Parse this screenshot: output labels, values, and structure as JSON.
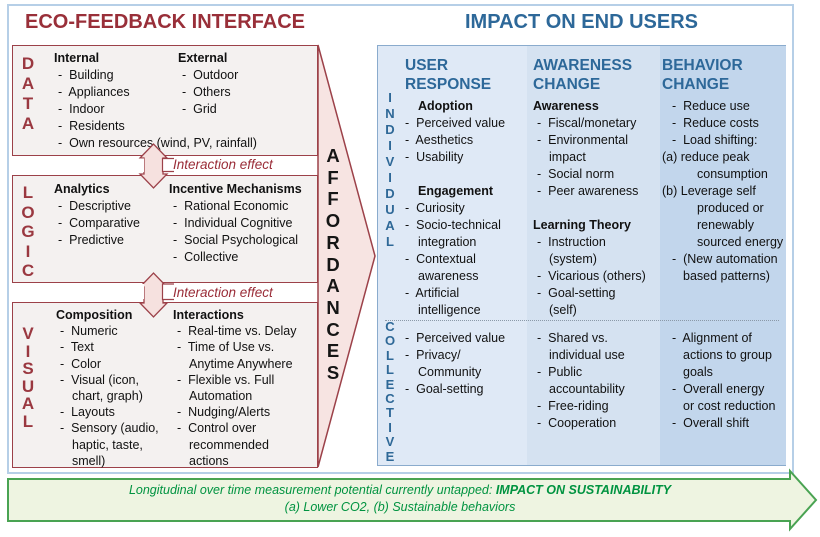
{
  "bullet_marker": "-  ",
  "colors": {
    "dark_red_text": "#992f39",
    "dark_red_border": "#9c4149",
    "box_fill": "#f4f1f0",
    "pink_arrow_fill": "#f7e4e2",
    "steel_blue": "#2d6899",
    "panel_border": "#8aabcd",
    "col1_fill": "#dfe9f6",
    "col2_fill": "#d5e2f1",
    "col3_fill": "#c2d6ec",
    "green_text": "#009340",
    "green_border": "#49a352",
    "green_fill": "#eef4e1"
  },
  "left": {
    "title": "ECO-FEEDBACK INTERFACE",
    "interaction_label": "Interaction effect",
    "affordances": "AFFORDANCES",
    "boxes": [
      {
        "letters": "DATA",
        "col1": [
          [
            "h",
            "Internal"
          ],
          [
            "b",
            "Building"
          ],
          [
            "b",
            "Appliances"
          ],
          [
            "b",
            "Indoor"
          ],
          [
            "b",
            "Residents"
          ],
          [
            "b",
            "Own resources (wind, PV, rainfall)"
          ]
        ],
        "col2": [
          [
            "h",
            "External"
          ],
          [
            "b",
            "Outdoor"
          ],
          [
            "b",
            "Others"
          ],
          [
            "b",
            "Grid"
          ]
        ]
      },
      {
        "letters": "LOGIC",
        "col1": [
          [
            "h",
            "Analytics"
          ],
          [
            "b",
            "Descriptive"
          ],
          [
            "b",
            "Comparative"
          ],
          [
            "b",
            "Predictive"
          ]
        ],
        "col2": [
          [
            "h",
            "Incentive Mechanisms"
          ],
          [
            "b",
            "Rational Economic"
          ],
          [
            "b",
            "Individual Cognitive"
          ],
          [
            "b",
            "Social Psychological"
          ],
          [
            "b",
            "Collective"
          ]
        ]
      },
      {
        "letters": "VISUAL",
        "col1": [
          [
            "h",
            "Composition"
          ],
          [
            "b",
            "Numeric"
          ],
          [
            "b",
            "Text"
          ],
          [
            "b",
            "Color"
          ],
          [
            "b",
            "Visual (icon,"
          ],
          [
            "w",
            "chart, graph)"
          ],
          [
            "b",
            "Layouts"
          ],
          [
            "b",
            "Sensory (audio,"
          ],
          [
            "w",
            "haptic, taste,"
          ],
          [
            "w",
            "smell)"
          ]
        ],
        "col2": [
          [
            "h",
            "Interactions"
          ],
          [
            "b",
            "Real-time vs. Delay"
          ],
          [
            "b",
            "Time of Use vs."
          ],
          [
            "w",
            "Anytime Anywhere"
          ],
          [
            "b",
            "Flexible vs. Full"
          ],
          [
            "w",
            "Automation"
          ],
          [
            "b",
            "Nudging/Alerts"
          ],
          [
            "b",
            "Control over"
          ],
          [
            "w",
            "recommended"
          ],
          [
            "w",
            "actions"
          ]
        ]
      }
    ]
  },
  "right": {
    "title": "IMPACT ON END USERS",
    "row_labels": [
      "INDIVIDUAL",
      "COLLECTIVE"
    ],
    "columns": [
      {
        "header": "USER RESPONSE",
        "individual": [
          [
            "h",
            "Adoption"
          ],
          [
            "b",
            "Perceived value"
          ],
          [
            "b",
            "Aesthetics"
          ],
          [
            "b",
            "Usability"
          ],
          [
            "s",
            ""
          ],
          [
            "h",
            "Engagement"
          ],
          [
            "b",
            "Curiosity"
          ],
          [
            "b",
            "Socio-technical"
          ],
          [
            "w",
            "integration"
          ],
          [
            "b",
            "Contextual"
          ],
          [
            "w",
            "awareness"
          ],
          [
            "b",
            "Artificial"
          ],
          [
            "w",
            "intelligence"
          ]
        ],
        "collective": [
          [
            "b",
            "Perceived value"
          ],
          [
            "b",
            "Privacy/"
          ],
          [
            "w",
            "Community"
          ],
          [
            "b",
            "Goal-setting"
          ]
        ]
      },
      {
        "header": "AWARENESS CHANGE",
        "individual": [
          [
            "h",
            "Awareness"
          ],
          [
            "b",
            "Fiscal/monetary"
          ],
          [
            "b",
            "Environmental"
          ],
          [
            "w",
            "impact"
          ],
          [
            "b",
            "Social norm"
          ],
          [
            "b",
            "Peer awareness"
          ],
          [
            "s",
            ""
          ],
          [
            "h",
            "Learning Theory"
          ],
          [
            "b",
            "Instruction"
          ],
          [
            "w",
            "(system)"
          ],
          [
            "b",
            "Vicarious (others)"
          ],
          [
            "b",
            "Goal-setting"
          ],
          [
            "w",
            "(self)"
          ]
        ],
        "collective": [
          [
            "b",
            "Shared vs."
          ],
          [
            "w",
            "individual use"
          ],
          [
            "b",
            "Public"
          ],
          [
            "w",
            "accountability"
          ],
          [
            "b",
            "Free-riding"
          ],
          [
            "b",
            "Cooperation"
          ]
        ]
      },
      {
        "header": "BEHAVIOR CHANGE",
        "individual": [
          [
            "b",
            "Reduce use"
          ],
          [
            "b",
            "Reduce costs"
          ],
          [
            "b",
            "Load shifting:"
          ],
          [
            "a",
            "(a) reduce peak"
          ],
          [
            "w2",
            "consumption"
          ],
          [
            "a",
            "(b) Leverage self"
          ],
          [
            "w2",
            "produced or"
          ],
          [
            "w2",
            "renewably"
          ],
          [
            "w2",
            "sourced energy"
          ],
          [
            "b",
            "(New automation"
          ],
          [
            "w",
            "based patterns)"
          ]
        ],
        "collective": [
          [
            "b",
            "Alignment of"
          ],
          [
            "w",
            "actions to group"
          ],
          [
            "w",
            "goals"
          ],
          [
            "b",
            "Overall energy"
          ],
          [
            "w",
            "or cost reduction"
          ],
          [
            "b",
            "Overall shift"
          ]
        ]
      }
    ]
  },
  "banner": {
    "line1_regular": "Longitudinal over time measurement potential currently untapped: ",
    "line1_bold": "IMPACT ON SUSTAINABILITY",
    "line2": "(a) Lower CO2, (b) Sustainable behaviors"
  }
}
